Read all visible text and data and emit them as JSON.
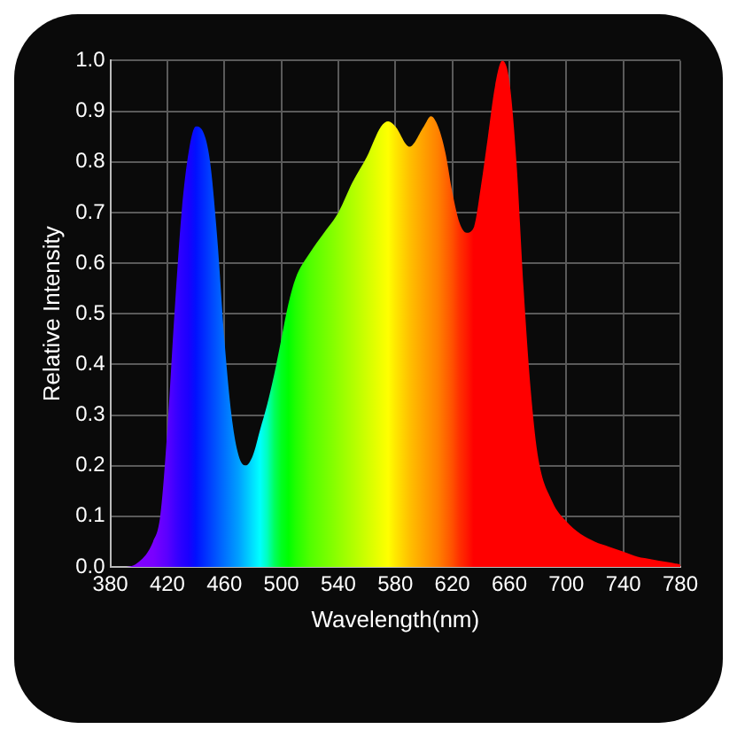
{
  "chart_data": {
    "type": "area",
    "xlabel": "Wavelength(nm)",
    "ylabel": "Relative Intensity",
    "x": [
      380,
      390,
      400,
      410,
      415,
      420,
      425,
      430,
      435,
      440,
      445,
      450,
      455,
      460,
      465,
      470,
      475,
      480,
      485,
      490,
      495,
      500,
      505,
      510,
      520,
      530,
      540,
      550,
      560,
      570,
      575,
      580,
      590,
      600,
      605,
      610,
      615,
      620,
      625,
      630,
      635,
      640,
      645,
      650,
      655,
      660,
      665,
      670,
      675,
      680,
      690,
      700,
      710,
      720,
      730,
      740,
      750,
      760,
      770,
      780
    ],
    "series": [
      {
        "values": [
          0,
          0,
          0.01,
          0.05,
          0.1,
          0.27,
          0.5,
          0.7,
          0.82,
          0.87,
          0.86,
          0.8,
          0.65,
          0.45,
          0.3,
          0.22,
          0.2,
          0.22,
          0.27,
          0.32,
          0.38,
          0.45,
          0.52,
          0.57,
          0.62,
          0.66,
          0.7,
          0.76,
          0.81,
          0.87,
          0.88,
          0.87,
          0.83,
          0.87,
          0.89,
          0.87,
          0.82,
          0.74,
          0.68,
          0.66,
          0.67,
          0.75,
          0.85,
          0.95,
          1.0,
          0.96,
          0.8,
          0.55,
          0.35,
          0.22,
          0.13,
          0.09,
          0.065,
          0.05,
          0.04,
          0.03,
          0.02,
          0.015,
          0.01,
          0.005
        ],
        "colors": [
          "#8000ff",
          "#8000ff",
          "#8000ff",
          "#7a00ff",
          "#6a00ff",
          "#5a00ff",
          "#4000ff",
          "#2a00ff",
          "#1a00ff",
          "#0010ff",
          "#0028ff",
          "#0040ff",
          "#0058ff",
          "#0070ff",
          "#0088ff",
          "#00a0ff",
          "#00c0ff",
          "#00e0ff",
          "#00ffff",
          "#00ffc0",
          "#00ff60",
          "#00ff20",
          "#00ff00",
          "#20ff00",
          "#50ff00",
          "#70ff00",
          "#90ff00",
          "#b0ff00",
          "#d0ff00",
          "#f0ff00",
          "#ffff00",
          "#ffe800",
          "#ffc000",
          "#ffa000",
          "#ff9000",
          "#ff8000",
          "#ff6800",
          "#ff5000",
          "#ff3000",
          "#ff1a00",
          "#ff0000",
          "#ff0000",
          "#ff0000",
          "#ff0000",
          "#ff0000",
          "#ff0000",
          "#ff0000",
          "#ff0000",
          "#ff0000",
          "#ff0000",
          "#ff0000",
          "#ff0000",
          "#ff0000",
          "#ff0000",
          "#ff0000",
          "#ff0000",
          "#ff0000",
          "#ff0000",
          "#ff0000",
          "#ff0000"
        ]
      }
    ],
    "xlim": [
      380,
      780
    ],
    "xticks": [
      380,
      420,
      460,
      500,
      540,
      580,
      620,
      660,
      700,
      740,
      780
    ],
    "ylim": [
      0,
      1.0
    ],
    "yticks": [
      {
        "value": 0,
        "label": "0.0"
      },
      {
        "value": 0.1,
        "label": "0.1"
      },
      {
        "value": 0.2,
        "label": "0.2"
      },
      {
        "value": 0.3,
        "label": "0.3"
      },
      {
        "value": 0.4,
        "label": "0.4"
      },
      {
        "value": 0.5,
        "label": "0.5"
      },
      {
        "value": 0.6,
        "label": "0.6"
      },
      {
        "value": 0.7,
        "label": "0.7"
      },
      {
        "value": 0.8,
        "label": "0.8"
      },
      {
        "value": 0.9,
        "label": "0.9"
      },
      {
        "value": 1.0,
        "label": "1.0"
      }
    ],
    "grid": true,
    "legend": false
  }
}
